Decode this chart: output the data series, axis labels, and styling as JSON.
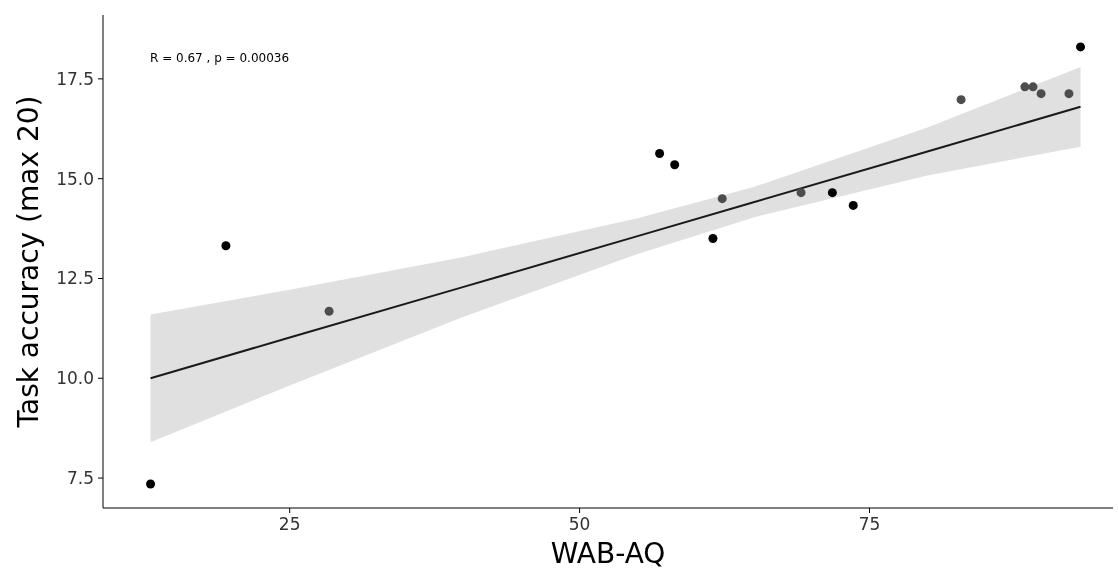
{
  "chart_data": {
    "type": "scatter",
    "xlabel": "WAB-AQ",
    "ylabel": "Task accuracy (max 20)",
    "xlim": [
      8.9,
      96
    ],
    "ylim": [
      6.75,
      19.1
    ],
    "xticks": [
      25,
      50,
      75
    ],
    "yticks": [
      {
        "value": 7.5,
        "label": "7.5"
      },
      {
        "value": 10,
        "label": "10.0"
      },
      {
        "value": 12.5,
        "label": "12.5"
      },
      {
        "value": 15,
        "label": "15.0"
      },
      {
        "value": 17.5,
        "label": "17.5"
      }
    ],
    "grid": false,
    "annotations": [
      "R = 0.67 , p = 0.00036"
    ],
    "series": [
      {
        "marker": "circle",
        "x": [
          13.0,
          19.5,
          28.4,
          56.9,
          58.2,
          61.5,
          62.3,
          69.1,
          71.8,
          73.6,
          82.9,
          88.4,
          89.1,
          89.8,
          92.2,
          93.2
        ],
        "values": [
          7.35,
          13.32,
          11.68,
          15.63,
          15.35,
          13.5,
          14.5,
          14.65,
          14.65,
          14.33,
          16.98,
          17.3,
          17.3,
          17.13,
          17.13,
          18.3
        ],
        "colors": [
          "#000000",
          "#000000",
          "#4d4d4d",
          "#000000",
          "#000000",
          "#000000",
          "#4d4d4d",
          "#4d4d4d",
          "#000000",
          "#000000",
          "#4d4d4d",
          "#4d4d4d",
          "#4d4d4d",
          "#4d4d4d",
          "#4d4d4d",
          "#000000"
        ]
      },
      {
        "type": "line",
        "color": "#1a1a1a",
        "x": [
          13,
          25,
          40,
          55,
          65,
          80,
          93.2
        ],
        "values": [
          10.0,
          11.02,
          12.29,
          13.56,
          14.41,
          15.68,
          16.8
        ],
        "lower": [
          8.4,
          9.82,
          11.54,
          13.11,
          14.03,
          15.08,
          15.8
        ],
        "upper": [
          11.6,
          12.22,
          13.04,
          14.01,
          14.79,
          16.28,
          17.8
        ],
        "line_style": "solid"
      }
    ]
  }
}
